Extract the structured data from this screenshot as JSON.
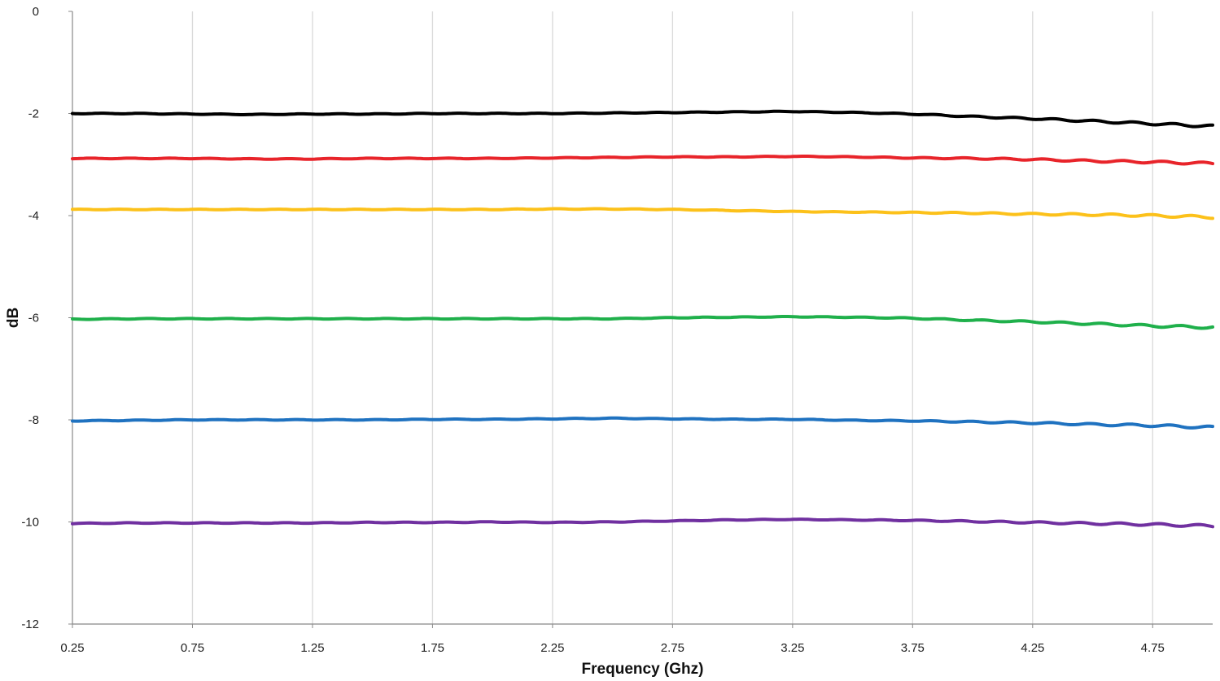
{
  "chart_data": {
    "type": "line",
    "title": "",
    "xlabel": "Frequency (Ghz)",
    "ylabel": "dB",
    "xlim": [
      0.25,
      5.0
    ],
    "ylim": [
      -12,
      0
    ],
    "xticks": [
      "0.25",
      "0.75",
      "1.25",
      "1.75",
      "2.25",
      "2.75",
      "3.25",
      "3.75",
      "4.25",
      "4.75"
    ],
    "yticks": [
      "0",
      "-2",
      "-4",
      "-6",
      "-8",
      "-10",
      "-12"
    ],
    "grid": "vertical",
    "legend": "none",
    "x": [
      0.25,
      0.5,
      0.75,
      1.0,
      1.25,
      1.5,
      1.75,
      2.0,
      2.25,
      2.5,
      2.75,
      3.0,
      3.25,
      3.5,
      3.75,
      4.0,
      4.25,
      4.5,
      4.75,
      5.0
    ],
    "series": [
      {
        "color": "#000000",
        "values": [
          -2.0,
          -2.0,
          -2.01,
          -2.02,
          -2.01,
          -2.01,
          -2.0,
          -2.0,
          -2.0,
          -1.99,
          -1.98,
          -1.97,
          -1.96,
          -1.98,
          -2.01,
          -2.06,
          -2.1,
          -2.15,
          -2.2,
          -2.25
        ]
      },
      {
        "color": "#e8242a",
        "values": [
          -2.88,
          -2.88,
          -2.88,
          -2.89,
          -2.89,
          -2.88,
          -2.88,
          -2.88,
          -2.87,
          -2.86,
          -2.85,
          -2.85,
          -2.84,
          -2.85,
          -2.87,
          -2.88,
          -2.9,
          -2.93,
          -2.95,
          -2.98
        ]
      },
      {
        "color": "#fcc11a",
        "values": [
          -3.88,
          -3.88,
          -3.88,
          -3.88,
          -3.88,
          -3.88,
          -3.88,
          -3.88,
          -3.87,
          -3.87,
          -3.88,
          -3.9,
          -3.92,
          -3.93,
          -3.94,
          -3.95,
          -3.97,
          -3.98,
          -4.0,
          -4.03
        ]
      },
      {
        "color": "#1fb04b",
        "values": [
          -6.03,
          -6.02,
          -6.02,
          -6.02,
          -6.02,
          -6.02,
          -6.02,
          -6.02,
          -6.02,
          -6.02,
          -6.0,
          -5.99,
          -5.98,
          -5.99,
          -6.01,
          -6.05,
          -6.08,
          -6.12,
          -6.16,
          -6.19
        ]
      },
      {
        "color": "#1f72c0",
        "values": [
          -8.02,
          -8.01,
          -8.0,
          -8.0,
          -8.0,
          -8.0,
          -7.99,
          -7.99,
          -7.98,
          -7.97,
          -7.98,
          -7.99,
          -7.99,
          -8.01,
          -8.02,
          -8.04,
          -8.06,
          -8.09,
          -8.11,
          -8.15
        ]
      },
      {
        "color": "#7030a0",
        "values": [
          -10.03,
          -10.02,
          -10.02,
          -10.02,
          -10.02,
          -10.01,
          -10.01,
          -10.0,
          -10.01,
          -10.0,
          -9.98,
          -9.96,
          -9.95,
          -9.96,
          -9.97,
          -9.99,
          -10.01,
          -10.03,
          -10.05,
          -10.08
        ]
      }
    ]
  }
}
